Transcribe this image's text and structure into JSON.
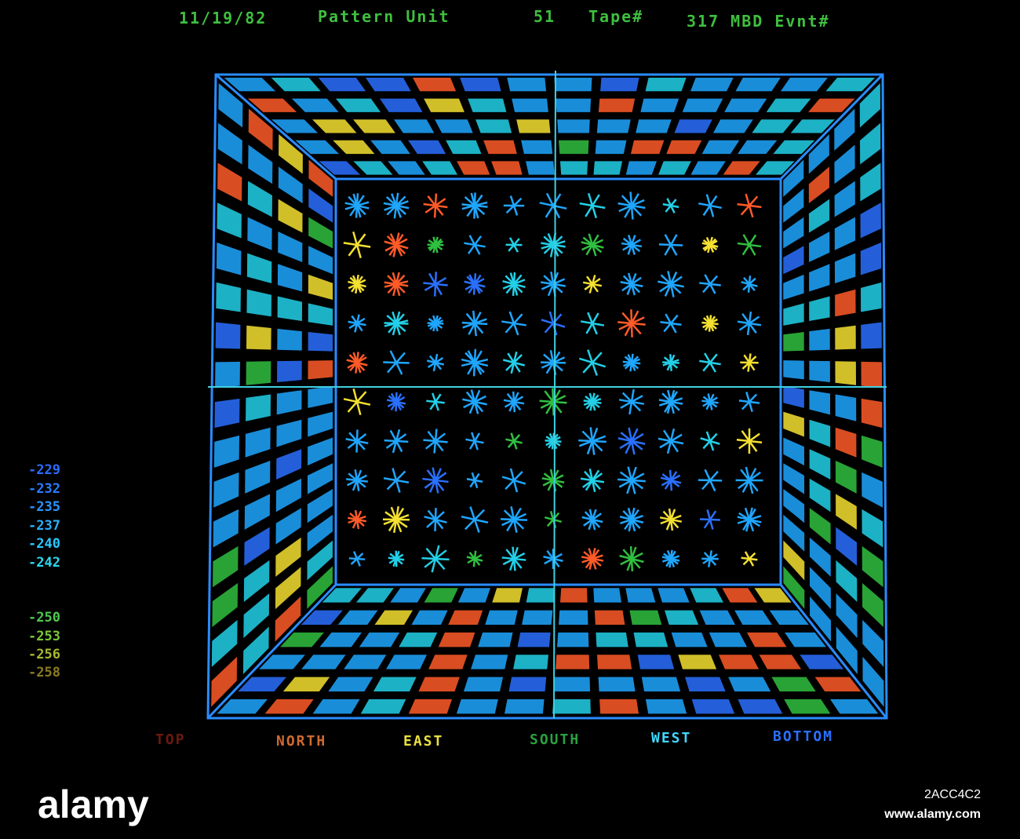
{
  "header": {
    "date": "11/19/82",
    "label": "Pattern Unit",
    "unit": "51",
    "tape_label": "Tape#",
    "tape_info": "317 MBD Evnt#"
  },
  "scale": {
    "labels": [
      "-229",
      "-232",
      "-235",
      "-237",
      "-240",
      "-242",
      "-250",
      "-253",
      "-256",
      "-258"
    ]
  },
  "faces": [
    "TOP",
    "NORTH",
    "EAST",
    "SOUTH",
    "WEST",
    "BOTTOM"
  ],
  "watermark": {
    "logo": "alamy",
    "site": "www.alamy.com",
    "id": "2ACC4C2"
  }
}
